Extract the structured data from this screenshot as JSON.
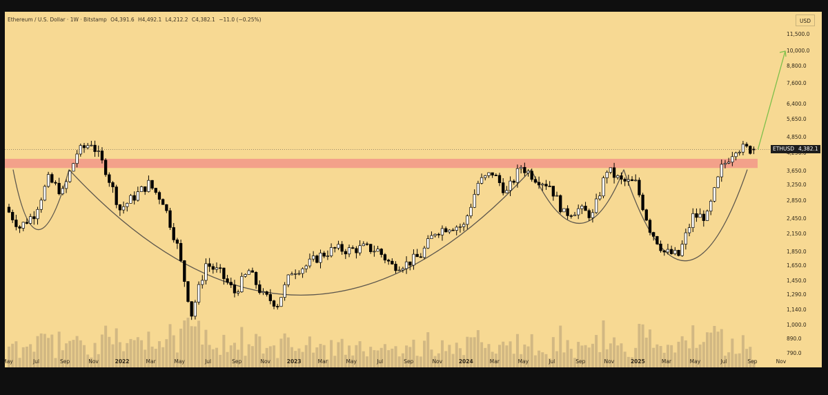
{
  "header": {
    "symbol_title": "Ethereum / U.S. Dollar · 1W · Bitstamp",
    "open": "O4,391.6",
    "high": "H4,492.1",
    "low": "L4,212.2",
    "close": "C4,382.1",
    "change": "−11.0 (−0.25%)"
  },
  "currency_button": "USD",
  "price_label": {
    "symbol": "ETHUSD",
    "value": "4,382.1"
  },
  "colors": {
    "background": "#f7d993",
    "candle": "#000000",
    "volume": "#d2b883",
    "resistance_zone": "#f29a8a",
    "arc": "#5d574d",
    "projection_arrow": "#7cbf4a"
  },
  "chart_data": {
    "type": "candlestick",
    "title": "Ethereum / U.S. Dollar · 1W · Bitstamp",
    "scale": "log",
    "ylim": [
      780,
      14000
    ],
    "y_ticks": [
      "11,500.0",
      "10,000.0",
      "8,800.0",
      "7,600.0",
      "6,400.0",
      "5,650.0",
      "4,850.0",
      "4,250.0",
      "3,650.0",
      "3,250.0",
      "2,850.0",
      "2,450.0",
      "2,150.0",
      "1,850.0",
      "1,650.0",
      "1,450.0",
      "1,290.0",
      "1,140.0",
      "1,000.0",
      "890.0",
      "790.0"
    ],
    "x_ticks": [
      "May",
      "Jul",
      "Sep",
      "Nov",
      "2022",
      "Mar",
      "May",
      "Jul",
      "Sep",
      "Nov",
      "2023",
      "Mar",
      "May",
      "Jul",
      "Sep",
      "Nov",
      "2024",
      "Mar",
      "May",
      "Jul",
      "Sep",
      "Nov",
      "2025",
      "Mar",
      "May",
      "Jul",
      "Sep",
      "Nov"
    ],
    "x_tick_dates": [
      "2021-05",
      "2021-07",
      "2021-09",
      "2021-11",
      "2022-01",
      "2022-03",
      "2022-05",
      "2022-07",
      "2022-09",
      "2022-11",
      "2023-01",
      "2023-03",
      "2023-05",
      "2023-07",
      "2023-09",
      "2023-11",
      "2024-01",
      "2024-03",
      "2024-05",
      "2024-07",
      "2024-09",
      "2024-11",
      "2025-01",
      "2025-03",
      "2025-05",
      "2025-07",
      "2025-09",
      "2025-11"
    ],
    "x_range": [
      "2021-05",
      "2025-11"
    ],
    "series": [
      {
        "dates": [
          "2021-05",
          "2021-06",
          "2021-07",
          "2021-08",
          "2021-09",
          "2021-10",
          "2021-11",
          "2021-12",
          "2022-01",
          "2022-02",
          "2022-03",
          "2022-04",
          "2022-05",
          "2022-06",
          "2022-07",
          "2022-08",
          "2022-09",
          "2022-10",
          "2022-11",
          "2022-12",
          "2023-01",
          "2023-02",
          "2023-03",
          "2023-04",
          "2023-05",
          "2023-06",
          "2023-07",
          "2023-08",
          "2023-09",
          "2023-10",
          "2023-11",
          "2023-12",
          "2024-01",
          "2024-02",
          "2024-03",
          "2024-04",
          "2024-05",
          "2024-06",
          "2024-07",
          "2024-08",
          "2024-09",
          "2024-10",
          "2024-11",
          "2024-12",
          "2025-01",
          "2025-02",
          "2025-03",
          "2025-04",
          "2025-05",
          "2025-06",
          "2025-07",
          "2025-08",
          "2025-09"
        ],
        "close": [
          2700,
          2280,
          2550,
          3400,
          3050,
          4250,
          4650,
          3700,
          2650,
          2950,
          3280,
          2850,
          1950,
          1100,
          1680,
          1550,
          1320,
          1580,
          1280,
          1200,
          1580,
          1650,
          1800,
          1900,
          1880,
          1920,
          1880,
          1650,
          1680,
          1800,
          2200,
          2300,
          2300,
          3300,
          3600,
          3050,
          3800,
          3450,
          3250,
          2550,
          2650,
          2520,
          3700,
          3350,
          3300,
          2250,
          1850,
          1800,
          2500,
          2500,
          3750,
          4450,
          4382
        ]
      }
    ],
    "annotations": {
      "resistance_zone": [
        3750,
        4050
      ],
      "projection_target": 10000,
      "pattern": "cup and handle"
    }
  }
}
